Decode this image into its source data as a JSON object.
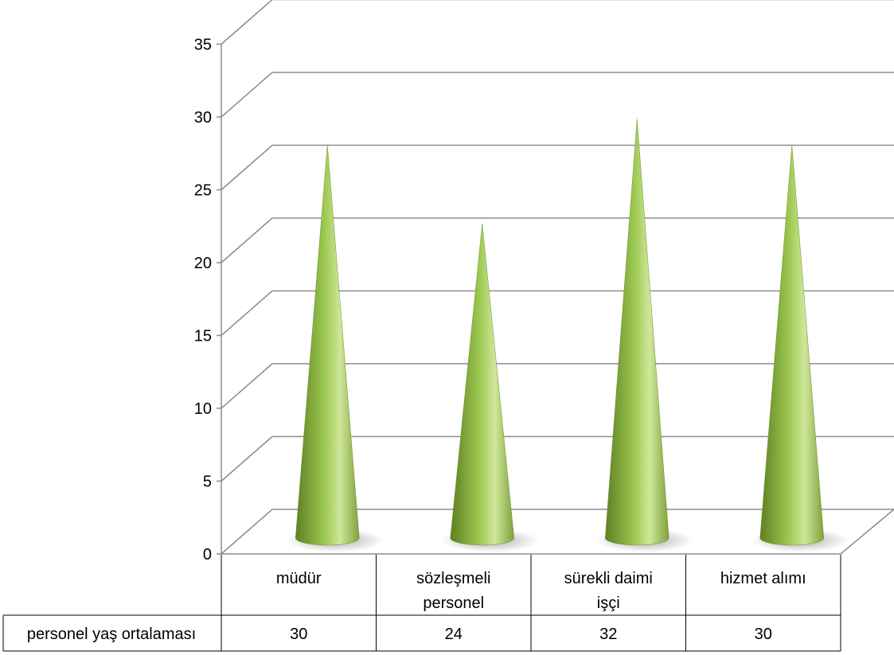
{
  "chart_data": {
    "type": "bar",
    "bar_shape": "cone",
    "view": "3d",
    "categories": [
      "müdür",
      "sözleşmeli personel",
      "sürekli daimi işçi",
      "hizmet alımı"
    ],
    "category_lines": [
      [
        "müdür"
      ],
      [
        "sözleşmeli",
        "personel"
      ],
      [
        "sürekli daimi",
        "işçi"
      ],
      [
        "hizmet alımı"
      ]
    ],
    "series": [
      {
        "name": "personel yaş ortalaması",
        "values": [
          30,
          24,
          32,
          30
        ]
      }
    ],
    "ylim": [
      0,
      35
    ],
    "yticks": [
      0,
      5,
      10,
      15,
      20,
      25,
      30,
      35
    ],
    "grid": true,
    "legend": "data-table",
    "data_table": true,
    "colors": {
      "cone_dark": "#5e7f22",
      "cone_mid": "#9cc850",
      "cone_light": "#cfe79a",
      "grid": "#8c8c8c"
    }
  }
}
